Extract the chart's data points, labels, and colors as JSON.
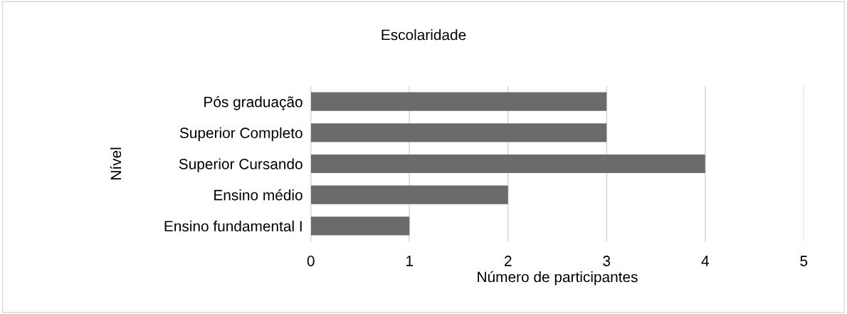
{
  "chart_data": {
    "type": "bar",
    "orientation": "horizontal",
    "title": "Escolaridade",
    "xlabel": "Número de participantes",
    "ylabel": "Nível",
    "categories": [
      "Pós graduação",
      "Superior Completo",
      "Superior Cursando",
      "Ensino médio",
      "Ensino fundamental I"
    ],
    "values": [
      3,
      3,
      4,
      2,
      1
    ],
    "color": "#6b6b6b",
    "xlim": [
      0,
      5
    ],
    "xticks": [
      0,
      1,
      2,
      3,
      4,
      5
    ],
    "grid": "x"
  }
}
